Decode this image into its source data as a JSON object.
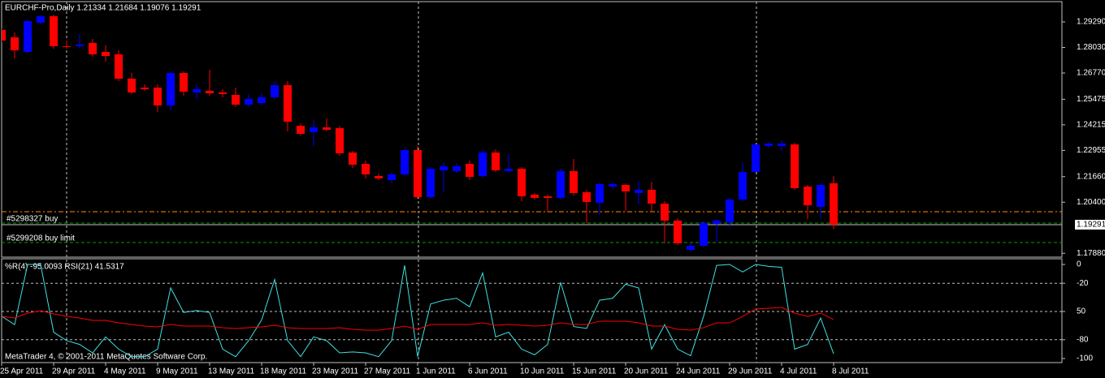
{
  "chart_data": [
    {
      "type": "candlestick",
      "title": "EURCHF-Pro,Daily  1.21334 1.21684 1.19076 1.19291",
      "categories": [
        "25 Apr 2011",
        null,
        null,
        null,
        "29 Apr 2011",
        null,
        null,
        null,
        "4 May 2011",
        null,
        null,
        null,
        "9 May 2011",
        null,
        null,
        null,
        "13 May 2011",
        null,
        null,
        null,
        "18 May 2011",
        null,
        null,
        null,
        "23 May 2011",
        null,
        null,
        null,
        "27 May 2011",
        null,
        null,
        null,
        "1 Jun 2011",
        null,
        null,
        null,
        "6 Jun 2011",
        null,
        null,
        null,
        "10 Jun 2011",
        null,
        null,
        null,
        "15 Jun 2011",
        null,
        null,
        null,
        "20 Jun 2011",
        null,
        null,
        null,
        "24 Jun 2011",
        null,
        null,
        null,
        "29 Jun 2011",
        null,
        null,
        null,
        "4 Jul 2011",
        null,
        null,
        null,
        "8 Jul 2011"
      ],
      "open": [
        1.2889,
        1.2853,
        1.2781,
        1.2925,
        1.2957,
        1.2809,
        1.2809,
        1.2825,
        1.2781,
        1.2769,
        1.2649,
        1.2605,
        1.2605,
        1.2517,
        1.2677,
        1.2581,
        1.2589,
        1.2581,
        1.2569,
        1.2521,
        1.2529,
        1.2557,
        1.2617,
        1.2417,
        1.2385,
        1.2409,
        1.2405,
        1.2285,
        1.2229,
        1.2169,
        1.2149,
        1.2177,
        1.2297,
        1.2065,
        1.2197,
        1.2193,
        1.2229,
        1.2169,
        1.2285,
        1.2193,
        1.2205,
        1.2077,
        1.2069,
        1.2061,
        1.2193,
        1.2089,
        1.2037,
        1.2117,
        1.2125,
        1.2085,
        1.2101,
        1.2033,
        1.1949,
        1.1805,
        1.1825,
        1.1933,
        1.1941,
        1.2053,
        1.2189,
        1.2317,
        1.2317,
        1.2325,
        1.2117,
        1.2017,
        1.21334
      ],
      "high": [
        1.2897,
        1.2877,
        1.2941,
        1.2965,
        1.2965,
        1.2837,
        1.2869,
        1.2845,
        1.2813,
        1.2789,
        1.2677,
        1.2621,
        1.2621,
        1.2685,
        1.2685,
        1.2621,
        1.2693,
        1.2597,
        1.2605,
        1.2573,
        1.2577,
        1.2637,
        1.2637,
        1.2429,
        1.2445,
        1.2453,
        1.2417,
        1.2293,
        1.2245,
        1.2181,
        1.2185,
        1.2305,
        1.2317,
        1.2213,
        1.2237,
        1.2233,
        1.2245,
        1.2301,
        1.2301,
        1.2277,
        1.2213,
        1.2085,
        1.2077,
        1.2205,
        1.2253,
        1.2101,
        1.2137,
        1.2137,
        1.2133,
        1.2145,
        1.2141,
        1.2045,
        1.1961,
        1.1837,
        1.1945,
        1.1957,
        1.2061,
        1.2237,
        1.2333,
        1.2337,
        1.2345,
        1.2333,
        1.2125,
        1.2133,
        1.21684
      ],
      "low": [
        1.2829,
        1.2749,
        1.2773,
        1.2917,
        1.2797,
        1.2797,
        1.2797,
        1.2757,
        1.2733,
        1.2637,
        1.2573,
        1.2589,
        1.2485,
        1.2493,
        1.2565,
        1.2549,
        1.2565,
        1.2557,
        1.2509,
        1.2509,
        1.2517,
        1.2549,
        1.2389,
        1.2369,
        1.2317,
        1.2389,
        1.2269,
        1.2209,
        1.2157,
        1.2149,
        1.2133,
        1.2169,
        1.2057,
        1.2057,
        1.2089,
        1.2185,
        1.2149,
        1.2161,
        1.2189,
        1.2189,
        1.2045,
        1.2053,
        1.1989,
        1.2053,
        1.2073,
        1.1937,
        1.1977,
        1.2105,
        1.1997,
        1.2029,
        1.1997,
        1.1837,
        1.1829,
        1.1797,
        1.1817,
        1.1845,
        1.1917,
        1.2045,
        1.2181,
        1.2309,
        1.2293,
        1.2101,
        1.1957,
        1.1957,
        1.19076
      ],
      "close": [
        1.2837,
        1.2789,
        1.2933,
        1.2957,
        1.2809,
        1.2805,
        1.2817,
        1.2769,
        1.2761,
        1.2649,
        1.2581,
        1.2597,
        1.2517,
        1.2677,
        1.2585,
        1.2597,
        1.2577,
        1.2573,
        1.2521,
        1.2549,
        1.2557,
        1.2617,
        1.2437,
        1.2377,
        1.2409,
        1.2397,
        1.2281,
        1.2225,
        1.2177,
        1.2157,
        1.2177,
        1.2297,
        1.2065,
        1.2205,
        1.2217,
        1.2217,
        1.2165,
        1.2285,
        1.2197,
        1.2205,
        1.2069,
        1.2061,
        1.2061,
        1.2193,
        1.2085,
        1.2041,
        1.2129,
        1.2129,
        1.2093,
        1.2101,
        1.2033,
        1.1949,
        1.1837,
        1.1825,
        1.1937,
        1.1949,
        1.2053,
        1.2189,
        1.2325,
        1.2329,
        1.2329,
        1.2109,
        1.2025,
        1.2125,
        1.19291
      ],
      "up_color": "#0000ff",
      "down_color": "#ff0000",
      "ylim": [
        1.1769,
        1.3037
      ],
      "yticks": [
        {
          "value": 1.2929,
          "label": "1.29290"
        },
        {
          "value": 1.2803,
          "label": "1.28030"
        },
        {
          "value": 1.2677,
          "label": "1.26770"
        },
        {
          "value": 1.25475,
          "label": "1.25475"
        },
        {
          "value": 1.24215,
          "label": "1.24215"
        },
        {
          "value": 1.22955,
          "label": "1.22955"
        },
        {
          "value": 1.2166,
          "label": "1.21660"
        },
        {
          "value": 1.204,
          "label": "1.20400"
        },
        {
          "value": 1.1788,
          "label": "1.17880"
        }
      ],
      "bid": {
        "value": 1.19291,
        "label": "1.19291"
      },
      "orders": [
        {
          "label": "#5298327 buy",
          "price": 1.1993,
          "color": "#ff8c00"
        },
        {
          "label": "#5299208 buy limit",
          "price": 1.1841,
          "color": "#00a000"
        }
      ],
      "stop_levels": [
        1.1937
      ]
    },
    {
      "type": "line",
      "title": "%R(4) -95.0093  RSI(21) 41.5317",
      "series": [
        {
          "color": "#40e0e0",
          "values": [
            -55,
            -64,
            0,
            0,
            -72,
            -81,
            -85,
            -94,
            -77,
            -90,
            -98,
            -98,
            -90,
            -25,
            -51,
            -49,
            -51,
            -90,
            -98,
            -81,
            -59,
            -16,
            -81,
            -98,
            -77,
            -81,
            -94,
            -93,
            -94,
            -98,
            -81,
            -1,
            -98,
            -42,
            -38,
            -36,
            -45,
            -9,
            -77,
            -72,
            -90,
            -96,
            -85,
            -19,
            -66,
            -68,
            -38,
            -36,
            -21,
            -25,
            -90,
            -64,
            -90,
            -97,
            -55,
            -1,
            0,
            -8,
            0,
            -2,
            -3,
            -90,
            -85,
            -57,
            -95.0093
          ]
        },
        {
          "color": "#ff0000",
          "axis": "y2",
          "values": [
            44.8,
            43.1,
            48.3,
            50.9,
            47.4,
            44.8,
            43.1,
            40.5,
            40.5,
            37.9,
            36.2,
            34.5,
            33.6,
            36.2,
            34.5,
            34.5,
            34.5,
            32.8,
            31.9,
            32.8,
            33.6,
            35.3,
            32.8,
            31.9,
            31.9,
            31.9,
            32.8,
            31.0,
            30.2,
            30.2,
            31.9,
            34.5,
            31.0,
            36.2,
            36.2,
            36.2,
            36.2,
            37.9,
            35.3,
            36.2,
            35.3,
            34.5,
            35.3,
            37.9,
            36.2,
            36.2,
            39.7,
            39.7,
            39.7,
            37.9,
            34.5,
            34.5,
            31.0,
            30.2,
            32.8,
            37.9,
            37.9,
            44.8,
            52.6,
            53.4,
            54.3,
            48.3,
            44.8,
            48.3,
            41.5317
          ]
        }
      ],
      "ylim": [
        -100,
        0
      ],
      "yticks": [
        0,
        -20,
        {
          "value": -50,
          "label": "50"
        },
        -80,
        -100
      ],
      "y2lim": [
        0,
        100
      ],
      "grid": true
    }
  ],
  "footer": "MetaTrader 4, © 2001-2011 MetaQuotes Software Corp."
}
